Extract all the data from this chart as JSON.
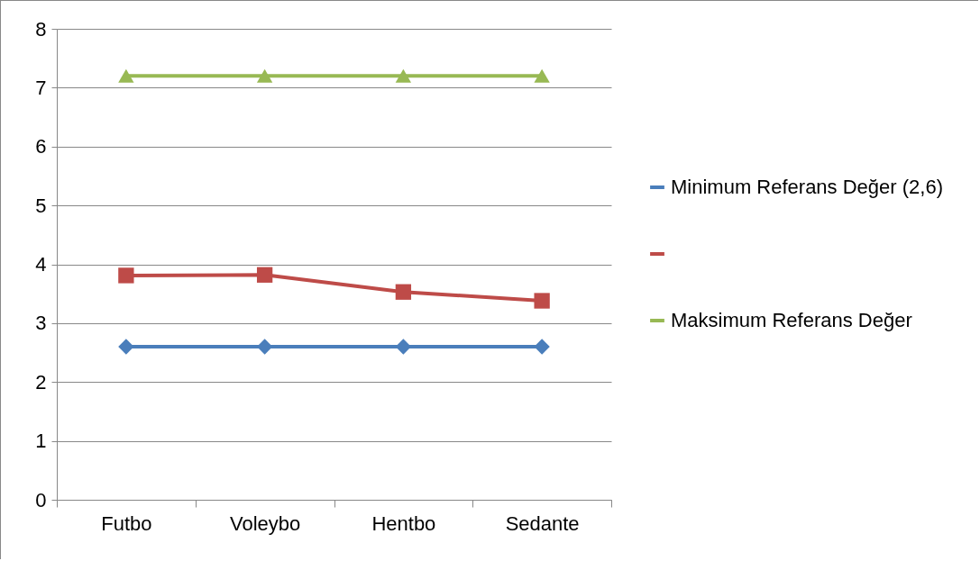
{
  "chart_data": {
    "type": "line",
    "categories": [
      "Futbo",
      "Voleybo",
      "Hentbo",
      "Sedante"
    ],
    "series": [
      {
        "name": "Minimum Referans Değer (2,6)",
        "color": "#4a7ebb",
        "marker": "diamond",
        "values": [
          2.6,
          2.6,
          2.6,
          2.6
        ]
      },
      {
        "color": "#be4b48",
        "marker": "square",
        "values": [
          3.81,
          3.82,
          3.53,
          3.38
        ]
      },
      {
        "name": "Maksimum Referans Değer",
        "color": "#98b954",
        "marker": "triangle",
        "values": [
          7.2,
          7.2,
          7.2,
          7.2
        ]
      }
    ],
    "ylim": [
      0,
      8
    ],
    "yticks": [
      0,
      1,
      2,
      3,
      4,
      5,
      6,
      7,
      8
    ],
    "grid": "y",
    "legend": "right"
  }
}
